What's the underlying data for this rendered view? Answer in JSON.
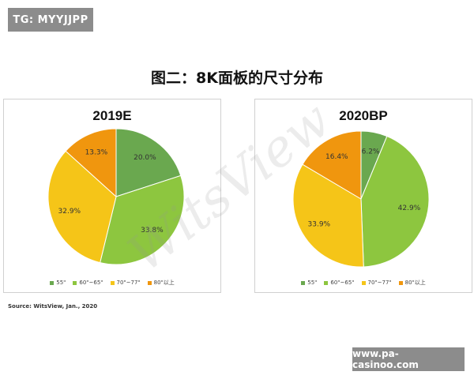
{
  "badge_top": "TG: MYYJJPP",
  "figure_title": "图二：8K面板的尺寸分布",
  "source": "Source: WitsView, Jan., 2020",
  "watermark": "WitsView",
  "badge_bottom": "www.pa-casinoo.com",
  "colors": {
    "55": "#6aa84f",
    "60_65": "#8dc63f",
    "70_77": "#f5c518",
    "80": "#f0960e"
  },
  "chart_data": [
    {
      "type": "pie",
      "title": "2019E",
      "categories": [
        "55\"",
        "60\"~65\"",
        "70\"~77\"",
        "80\"以上"
      ],
      "values": [
        20.0,
        33.8,
        32.9,
        13.3
      ],
      "labels": [
        "20.0%",
        "33.8%",
        "32.9%",
        "13.3%"
      ],
      "legend": [
        "55\"",
        "60\"~65\"",
        "70\"~77\"",
        "80\"以上"
      ],
      "legend_position": "bottom"
    },
    {
      "type": "pie",
      "title": "2020BP",
      "categories": [
        "55\"",
        "60\"~65\"",
        "70\"~77\"",
        "80\"以上"
      ],
      "values": [
        6.2,
        42.9,
        33.9,
        16.4
      ],
      "labels": [
        "6.2%",
        "42.9%",
        "33.9%",
        "16.4%"
      ],
      "legend": [
        "55\"",
        "60\"~65\"",
        "70\"~77\"",
        "80\"以上"
      ],
      "legend_position": "bottom"
    }
  ]
}
